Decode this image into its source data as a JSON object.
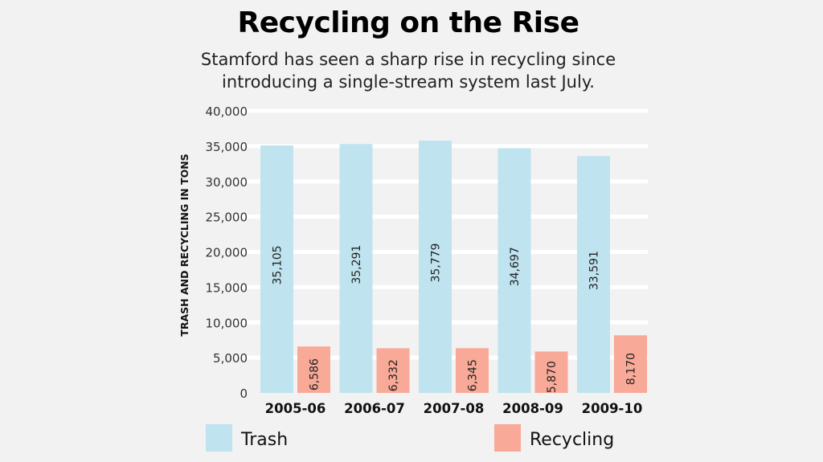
{
  "chart_data": {
    "type": "bar",
    "title": "Recycling on the Rise",
    "subtitle": [
      "Stamford has seen a sharp rise in recycling since",
      "introducing a single-stream system last July."
    ],
    "ylabel": "TRASH AND RECYCLING IN TONS",
    "xlabel": "",
    "ylim": [
      0,
      40000
    ],
    "yticks": [
      0,
      5000,
      10000,
      15000,
      20000,
      25000,
      30000,
      35000,
      40000
    ],
    "ytick_labels": [
      "0",
      "5,000",
      "10,000",
      "15,000",
      "20,000",
      "25,000",
      "30,000",
      "35,000",
      "40,000"
    ],
    "categories": [
      "2005-06",
      "2006-07",
      "2007-08",
      "2008-09",
      "2009-10"
    ],
    "series": [
      {
        "name": "Trash",
        "color": "#bfe3ef",
        "values": [
          35105,
          35291,
          35779,
          34697,
          33591
        ],
        "labels": [
          "35,105",
          "35,291",
          "35,779",
          "34,697",
          "33,591"
        ]
      },
      {
        "name": "Recycling",
        "color": "#f9a997",
        "values": [
          6586,
          6332,
          6345,
          5870,
          8170
        ],
        "labels": [
          "6,586",
          "6,332",
          "6,345",
          "5,870",
          "8,170"
        ]
      }
    ],
    "grid": true,
    "legend": "bottom"
  }
}
